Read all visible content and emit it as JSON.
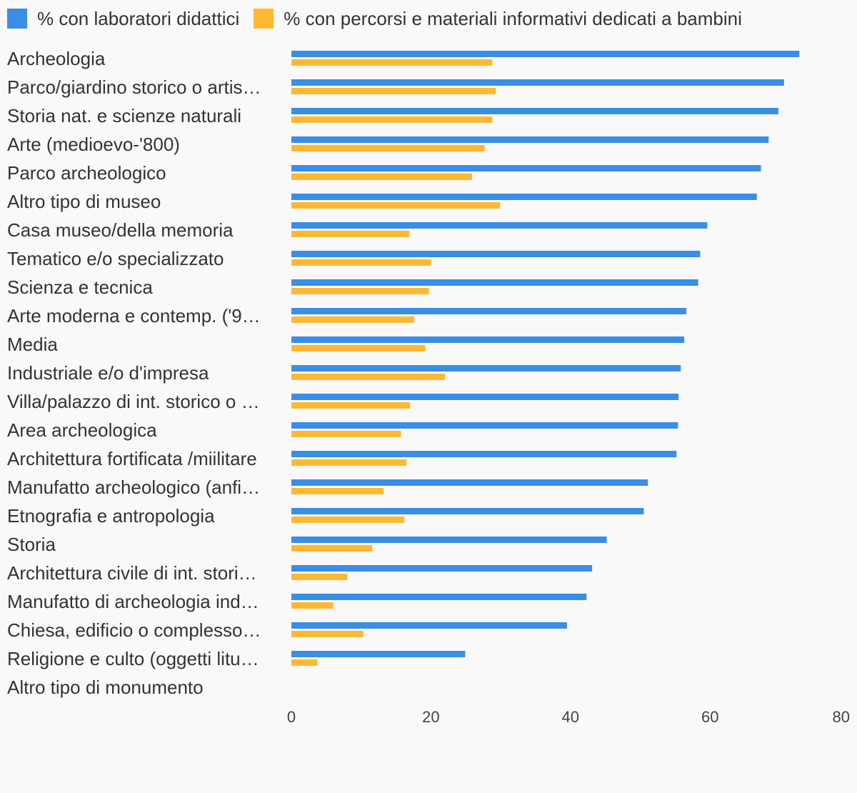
{
  "colors": {
    "series1": "#3a8ee6",
    "series2": "#ffb833",
    "background": "#f9f9f9",
    "text": "#333333"
  },
  "legend": {
    "position": "top-left",
    "items": [
      {
        "label": "% con laboratori didattici",
        "color": "#3a8ee6"
      },
      {
        "label": "% con percorsi e materiali informativi dedicati a bambini",
        "color": "#ffb833"
      }
    ]
  },
  "chart_data": {
    "type": "bar",
    "orientation": "horizontal",
    "categories": [
      "Archeologia",
      "Parco/giardino storico o artis…",
      "Storia nat. e scienze naturali",
      "Arte (medioevo-'800)",
      "Parco archeologico",
      "Altro tipo di museo",
      "Casa museo/della memoria",
      "Tematico e/o specializzato",
      "Scienza e tecnica",
      "Arte moderna e contemp. ('9…",
      "Media",
      "Industriale e/o d'impresa",
      "Villa/palazzo di int. storico o …",
      "Area archeologica",
      "Architettura fortificata /miilitare",
      "Manufatto archeologico (anfi…",
      "Etnografia e antropologia",
      "Storia",
      "Architettura civile di int. stori…",
      "Manufatto di archeologia ind…",
      "Chiesa, edificio o complesso…",
      "Religione e culto (oggetti litu…",
      "Altro tipo di monumento"
    ],
    "series": [
      {
        "name": "% con laboratori didattici",
        "color": "#3a8ee6",
        "values": [
          72.8,
          70.6,
          69.8,
          68.4,
          67.3,
          66.7,
          59.6,
          58.6,
          58.3,
          56.6,
          56.3,
          55.8,
          55.5,
          55.4,
          55.2,
          51.1,
          50.5,
          45.2,
          43.1,
          42.3,
          39.5,
          24.9,
          0
        ]
      },
      {
        "name": "% con percorsi e materiali informativi dedicati a bambini",
        "color": "#ffb833",
        "values": [
          28.8,
          29.3,
          28.8,
          27.7,
          25.9,
          29.9,
          16.9,
          20.0,
          19.7,
          17.6,
          19.2,
          22.0,
          17.0,
          15.7,
          16.5,
          13.2,
          16.2,
          11.6,
          8.0,
          6.0,
          10.3,
          3.7,
          0
        ]
      }
    ],
    "xlim": [
      0,
      80
    ],
    "xticks": [
      "0",
      "20",
      "40",
      "60",
      "80"
    ],
    "grid": false,
    "title": "",
    "xlabel": "",
    "ylabel": ""
  }
}
